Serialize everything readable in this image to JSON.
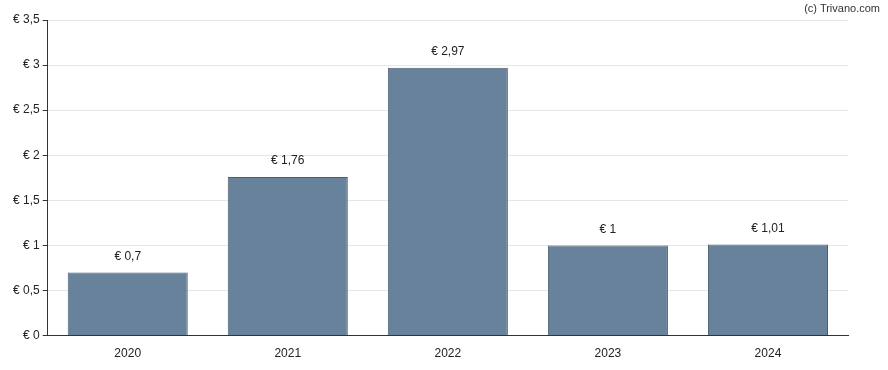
{
  "chart_data": {
    "type": "bar",
    "annotation": "(c) Trivano.com",
    "categories": [
      "2020",
      "2021",
      "2022",
      "2023",
      "2024"
    ],
    "values": [
      0.7,
      1.76,
      2.97,
      1,
      1.01
    ],
    "value_labels": [
      "€ 0,7",
      "€ 1,76",
      "€ 2,97",
      "€ 1",
      "€ 1,01"
    ],
    "data_labels": true,
    "color": "#67829a",
    "ylim": [
      0,
      3.5
    ],
    "yticks": [
      {
        "value": 0,
        "label": "€ 0"
      },
      {
        "value": 0.5,
        "label": "€ 0,5"
      },
      {
        "value": 1,
        "label": "€ 1"
      },
      {
        "value": 1.5,
        "label": "€ 1,5"
      },
      {
        "value": 2,
        "label": "€ 2"
      },
      {
        "value": 2.5,
        "label": "€ 2,5"
      },
      {
        "value": 3,
        "label": "€ 3"
      },
      {
        "value": 3.5,
        "label": "€ 3,5"
      }
    ],
    "grid": true
  }
}
